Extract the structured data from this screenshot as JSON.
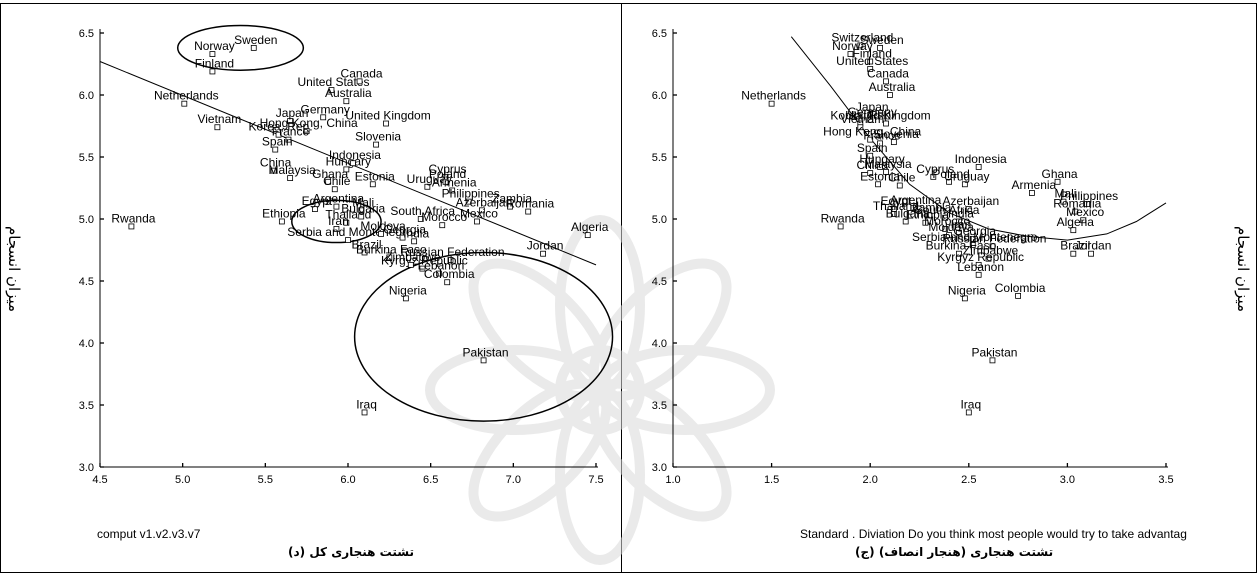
{
  "colors": {
    "ink": "#000000",
    "background": "#ffffff",
    "watermark": "#d9d9d9"
  },
  "watermark": {
    "icon": "decorative-rosette-icon"
  },
  "chart_data": [
    {
      "type": "scatter",
      "xlabel": "comput v1.v2.v3.v7",
      "ylabel": "میزان انسجام",
      "caption": "(د) تشتت هنجاری کل",
      "xlim": [
        4.5,
        7.5
      ],
      "ylim": [
        3.0,
        6.5
      ],
      "xticks": [
        "4.5",
        "5.0",
        "5.5",
        "6.0",
        "6.5",
        "7.0",
        "7.5"
      ],
      "yticks": [
        "3.0",
        "3.5",
        "4.0",
        "4.5",
        "5.0",
        "5.5",
        "6.0",
        "6.5"
      ],
      "grid": false,
      "trend_line": [
        [
          4.5,
          6.27
        ],
        [
          7.5,
          4.63
        ]
      ],
      "ellipses": [
        {
          "cx": 5.35,
          "cy": 6.38,
          "rx": 0.38,
          "ry": 0.18
        },
        {
          "cx": 5.93,
          "cy": 4.98,
          "rx": 0.27,
          "ry": 0.17
        },
        {
          "cx": 6.82,
          "cy": 4.05,
          "rx": 0.78,
          "ry": 0.68
        }
      ],
      "points": [
        {
          "label": "Sweden",
          "x": 5.43,
          "y": 6.38
        },
        {
          "label": "Norway",
          "x": 5.18,
          "y": 6.33
        },
        {
          "label": "Finland",
          "x": 5.18,
          "y": 6.19
        },
        {
          "label": "United States",
          "x": 5.9,
          "y": 6.04
        },
        {
          "label": "Canada",
          "x": 6.07,
          "y": 6.11
        },
        {
          "label": "Australia",
          "x": 5.99,
          "y": 5.95
        },
        {
          "label": "Netherlands",
          "x": 5.01,
          "y": 5.93
        },
        {
          "label": "Japan",
          "x": 5.65,
          "y": 5.79
        },
        {
          "label": "Germany",
          "x": 5.85,
          "y": 5.82
        },
        {
          "label": "United Kingdom",
          "x": 6.23,
          "y": 5.77
        },
        {
          "label": "Vietnam",
          "x": 5.21,
          "y": 5.74
        },
        {
          "label": "Korea, Rep.",
          "x": 5.58,
          "y": 5.68
        },
        {
          "label": "Hong Kong, China",
          "x": 5.75,
          "y": 5.71
        },
        {
          "label": "France",
          "x": 5.64,
          "y": 5.64
        },
        {
          "label": "Spain",
          "x": 5.56,
          "y": 5.56
        },
        {
          "label": "Slovenia",
          "x": 6.17,
          "y": 5.6
        },
        {
          "label": "China",
          "x": 5.55,
          "y": 5.39
        },
        {
          "label": "Malaysia",
          "x": 5.65,
          "y": 5.33
        },
        {
          "label": "Ghana",
          "x": 5.88,
          "y": 5.3
        },
        {
          "label": "Hungary",
          "x": 5.99,
          "y": 5.4
        },
        {
          "label": "Indonesia",
          "x": 6.03,
          "y": 5.45
        },
        {
          "label": "Chile",
          "x": 5.92,
          "y": 5.24
        },
        {
          "label": "Estonia",
          "x": 6.15,
          "y": 5.28
        },
        {
          "label": "Cyprus",
          "x": 6.59,
          "y": 5.34
        },
        {
          "label": "Uruguay",
          "x": 6.48,
          "y": 5.26
        },
        {
          "label": "Poland",
          "x": 6.59,
          "y": 5.3
        },
        {
          "label": "Armenia",
          "x": 6.63,
          "y": 5.23
        },
        {
          "label": "Philippines",
          "x": 6.73,
          "y": 5.14
        },
        {
          "label": "Zambia",
          "x": 6.98,
          "y": 5.1
        },
        {
          "label": "Azerbaijan",
          "x": 6.81,
          "y": 5.07
        },
        {
          "label": "Romania",
          "x": 7.09,
          "y": 5.06
        },
        {
          "label": "Egypt",
          "x": 5.8,
          "y": 5.08
        },
        {
          "label": "Argentina",
          "x": 5.93,
          "y": 5.1
        },
        {
          "label": "Mali",
          "x": 6.08,
          "y": 5.07
        },
        {
          "label": "Ethiopia",
          "x": 5.6,
          "y": 4.98
        },
        {
          "label": "Thailand",
          "x": 5.99,
          "y": 4.97
        },
        {
          "label": "Bulgaria",
          "x": 6.08,
          "y": 5.02
        },
        {
          "label": "South Africa",
          "x": 6.44,
          "y": 5.0
        },
        {
          "label": "Mexico",
          "x": 6.78,
          "y": 4.98
        },
        {
          "label": "Morocco",
          "x": 6.57,
          "y": 4.95
        },
        {
          "label": "Rwanda",
          "x": 4.69,
          "y": 4.94
        },
        {
          "label": "Algeria",
          "x": 7.45,
          "y": 4.87
        },
        {
          "label": "Iran",
          "x": 5.93,
          "y": 4.92
        },
        {
          "label": "Serbia and Montenegro",
          "x": 6.0,
          "y": 4.83
        },
        {
          "label": "Moldova",
          "x": 6.2,
          "y": 4.88
        },
        {
          "label": "Georgia",
          "x": 6.33,
          "y": 4.85
        },
        {
          "label": "India",
          "x": 6.4,
          "y": 4.82
        },
        {
          "label": "Jordan",
          "x": 7.18,
          "y": 4.72
        },
        {
          "label": "Brazil",
          "x": 6.1,
          "y": 4.73
        },
        {
          "label": "Burkina Faso",
          "x": 6.25,
          "y": 4.69
        },
        {
          "label": "Russian Federation",
          "x": 6.62,
          "y": 4.67
        },
        {
          "label": "Kyrgyz Republic",
          "x": 6.45,
          "y": 4.6
        },
        {
          "label": "Lebanon",
          "x": 6.55,
          "y": 4.56
        },
        {
          "label": "Zimbabwe",
          "x": 6.38,
          "y": 4.63
        },
        {
          "label": "Colombia",
          "x": 6.6,
          "y": 4.49
        },
        {
          "label": "Nigeria",
          "x": 6.35,
          "y": 4.36
        },
        {
          "label": "Pakistan",
          "x": 6.82,
          "y": 3.86
        },
        {
          "label": "Iraq",
          "x": 6.1,
          "y": 3.44
        }
      ]
    },
    {
      "type": "scatter",
      "xlabel": "Standard . Diviation Do you think most people would try to take advantag",
      "ylabel": "میزان انسجام",
      "caption": "(ج) تشتت هنجاری (هنجار انصاف)",
      "xlim": [
        1.0,
        3.5
      ],
      "ylim": [
        3.0,
        6.5
      ],
      "xticks": [
        "1.0",
        "1.5",
        "2.0",
        "2.5",
        "3.0",
        "3.5"
      ],
      "yticks": [
        "3.0",
        "3.5",
        "4.0",
        "4.5",
        "5.0",
        "5.5",
        "6.0",
        "6.5"
      ],
      "grid": false,
      "fit_curve": [
        [
          1.6,
          6.47
        ],
        [
          1.8,
          6.07
        ],
        [
          2.0,
          5.65
        ],
        [
          2.2,
          5.28
        ],
        [
          2.4,
          5.05
        ],
        [
          2.6,
          4.92
        ],
        [
          2.8,
          4.86
        ],
        [
          3.0,
          4.83
        ],
        [
          3.2,
          4.88
        ],
        [
          3.35,
          4.98
        ],
        [
          3.5,
          5.13
        ]
      ],
      "points": [
        {
          "label": "Sweden",
          "x": 2.05,
          "y": 6.38
        },
        {
          "label": "Switzerland",
          "x": 1.95,
          "y": 6.4
        },
        {
          "label": "Norway",
          "x": 1.9,
          "y": 6.33
        },
        {
          "label": "Finland",
          "x": 2.0,
          "y": 6.27
        },
        {
          "label": "United States",
          "x": 2.0,
          "y": 6.21
        },
        {
          "label": "Canada",
          "x": 2.08,
          "y": 6.11
        },
        {
          "label": "Australia",
          "x": 2.1,
          "y": 6.0
        },
        {
          "label": "Netherlands",
          "x": 1.5,
          "y": 5.93
        },
        {
          "label": "Japan",
          "x": 2.0,
          "y": 5.84
        },
        {
          "label": "Germany",
          "x": 2.0,
          "y": 5.8
        },
        {
          "label": "Korea, Rep.",
          "x": 1.95,
          "y": 5.77
        },
        {
          "label": "United Kingdom",
          "x": 2.08,
          "y": 5.77
        },
        {
          "label": "Vietnam",
          "x": 1.95,
          "y": 5.74
        },
        {
          "label": "Hong Kong, China",
          "x": 2.0,
          "y": 5.64
        },
        {
          "label": "France",
          "x": 2.05,
          "y": 5.61
        },
        {
          "label": "Slovenia",
          "x": 2.12,
          "y": 5.62
        },
        {
          "label": "Spain",
          "x": 2.0,
          "y": 5.51
        },
        {
          "label": "China",
          "x": 2.0,
          "y": 5.37
        },
        {
          "label": "Hungary",
          "x": 2.05,
          "y": 5.42
        },
        {
          "label": "Malaysia",
          "x": 2.08,
          "y": 5.38
        },
        {
          "label": "Estonia",
          "x": 2.04,
          "y": 5.28
        },
        {
          "label": "Chile",
          "x": 2.15,
          "y": 5.27
        },
        {
          "label": "Cyprus",
          "x": 2.32,
          "y": 5.34
        },
        {
          "label": "Poland",
          "x": 2.4,
          "y": 5.3
        },
        {
          "label": "Uruguay",
          "x": 2.48,
          "y": 5.28
        },
        {
          "label": "Indonesia",
          "x": 2.55,
          "y": 5.42
        },
        {
          "label": "Ghana",
          "x": 2.95,
          "y": 5.3
        },
        {
          "label": "Armenia",
          "x": 2.82,
          "y": 5.21
        },
        {
          "label": "Mali",
          "x": 2.98,
          "y": 5.14
        },
        {
          "label": "Philippines",
          "x": 3.1,
          "y": 5.12
        },
        {
          "label": "Romania",
          "x": 3.04,
          "y": 5.06
        },
        {
          "label": "Mexico",
          "x": 3.08,
          "y": 4.99
        },
        {
          "label": "Algeria",
          "x": 3.03,
          "y": 4.91
        },
        {
          "label": "Jordan",
          "x": 3.12,
          "y": 4.72
        },
        {
          "label": "Brazil",
          "x": 3.03,
          "y": 4.72
        },
        {
          "label": "Egypt",
          "x": 2.12,
          "y": 5.08
        },
        {
          "label": "Argentina",
          "x": 2.22,
          "y": 5.09
        },
        {
          "label": "Azerbaijan",
          "x": 2.5,
          "y": 5.08
        },
        {
          "label": "Thailand",
          "x": 2.12,
          "y": 5.04
        },
        {
          "label": "Zambia",
          "x": 2.3,
          "y": 5.03
        },
        {
          "label": "South Africa",
          "x": 2.38,
          "y": 5.01
        },
        {
          "label": "Rwanda",
          "x": 1.85,
          "y": 4.94
        },
        {
          "label": "Bulgaria",
          "x": 2.18,
          "y": 4.98
        },
        {
          "label": "Ethiopia",
          "x": 2.28,
          "y": 4.97
        },
        {
          "label": "India",
          "x": 2.45,
          "y": 4.98
        },
        {
          "label": "Morocco",
          "x": 2.38,
          "y": 4.92
        },
        {
          "label": "Iran",
          "x": 2.45,
          "y": 4.89
        },
        {
          "label": "Moldova",
          "x": 2.4,
          "y": 4.87
        },
        {
          "label": "Georgia",
          "x": 2.52,
          "y": 4.84
        },
        {
          "label": "Serbia and Montenegro",
          "x": 2.52,
          "y": 4.79
        },
        {
          "label": "Russian Federation",
          "x": 2.62,
          "y": 4.78
        },
        {
          "label": "Burkina Faso",
          "x": 2.45,
          "y": 4.72
        },
        {
          "label": "Zimbabwe",
          "x": 2.6,
          "y": 4.68
        },
        {
          "label": "Kyrgyz Republic",
          "x": 2.55,
          "y": 4.63
        },
        {
          "label": "Lebanon",
          "x": 2.55,
          "y": 4.55
        },
        {
          "label": "Colombia",
          "x": 2.75,
          "y": 4.38
        },
        {
          "label": "Nigeria",
          "x": 2.48,
          "y": 4.36
        },
        {
          "label": "Pakistan",
          "x": 2.62,
          "y": 3.86
        },
        {
          "label": "Iraq",
          "x": 2.5,
          "y": 3.44
        }
      ]
    }
  ]
}
